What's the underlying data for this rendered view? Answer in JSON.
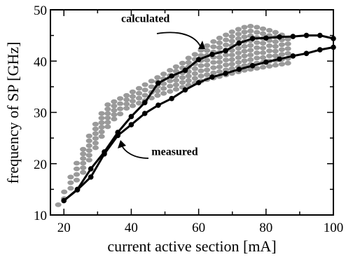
{
  "chart_data": {
    "type": "line",
    "xlabel": "current active section  [mA]",
    "ylabel": "frequency of SP  [GHz]",
    "xlim": [
      16,
      100
    ],
    "ylim": [
      10,
      50
    ],
    "xticks": [
      20,
      40,
      60,
      80,
      100
    ],
    "yticks": [
      10,
      20,
      30,
      40,
      50
    ],
    "grid": false,
    "annotations": [
      {
        "text": "calculated",
        "x": 37,
        "y": 47.6
      },
      {
        "text": "measured",
        "x": 46,
        "y": 21.7
      }
    ],
    "series": [
      {
        "type": "line",
        "marker": "filled-circle",
        "color": "#000000",
        "x": [
          20,
          24,
          28,
          32,
          36,
          40,
          44,
          48,
          52,
          56,
          60,
          64,
          68,
          72,
          76,
          80,
          84,
          88,
          92,
          96,
          100
        ],
        "y": [
          12.8,
          15.0,
          19.0,
          22.3,
          26.1,
          29.2,
          31.9,
          35.7,
          37.1,
          38.2,
          40.3,
          41.3,
          42.0,
          43.5,
          44.4,
          44.5,
          44.7,
          44.8,
          45.0,
          45.0,
          44.4
        ]
      },
      {
        "type": "line",
        "marker": "filled-circle",
        "color": "#000000",
        "x": [
          20,
          24,
          28,
          32,
          36,
          40,
          44,
          48,
          52,
          56,
          60,
          64,
          68,
          72,
          76,
          80,
          84,
          88,
          92,
          96,
          100
        ],
        "y": [
          12.8,
          14.9,
          17.4,
          21.9,
          25.5,
          27.6,
          29.8,
          31.4,
          32.7,
          34.4,
          35.8,
          36.9,
          37.6,
          38.4,
          39.1,
          39.8,
          40.4,
          41.0,
          41.5,
          42.2,
          42.7
        ]
      },
      {
        "type": "scatter",
        "marker": "grey-ellipse",
        "color": "#9a9a9a",
        "x": [
          18.3,
          20.1,
          22.0,
          23.8,
          25.7,
          27.5,
          29.4,
          31.2,
          33.0,
          34.9,
          36.7,
          38.6,
          40.4,
          42.3,
          44.1,
          46.0,
          47.8,
          49.6,
          51.5,
          53.3,
          55.2,
          57.0,
          58.9,
          60.7,
          62.5,
          64.4,
          66.2,
          68.1,
          69.9,
          71.8,
          73.6,
          75.4,
          77.3,
          79.1,
          81.0,
          82.8,
          84.7,
          86.5
        ],
        "ymin": [
          12.0,
          13.2,
          15.2,
          16.8,
          18.3,
          20.7,
          23.1,
          25.3,
          27.2,
          28.7,
          29.7,
          30.8,
          31.3,
          31.8,
          32.3,
          32.8,
          33.3,
          33.7,
          34.1,
          34.5,
          34.9,
          35.3,
          35.7,
          36.1,
          36.4,
          36.7,
          37.0,
          37.3,
          37.6,
          37.9,
          38.2,
          38.4,
          38.6,
          38.8,
          39.0,
          39.2,
          39.4,
          39.6
        ],
        "ymax": [
          12.3,
          14.5,
          17.4,
          20.1,
          22.8,
          25.4,
          27.7,
          29.8,
          31.5,
          32.1,
          32.7,
          33.3,
          34.0,
          34.7,
          35.4,
          36.1,
          36.8,
          37.5,
          38.2,
          38.9,
          39.6,
          40.6,
          41.3,
          42.1,
          43.0,
          43.8,
          44.5,
          45.1,
          45.7,
          46.2,
          46.6,
          46.8,
          46.6,
          46.3,
          46.0,
          45.6,
          45.1,
          44.3
        ]
      }
    ]
  }
}
